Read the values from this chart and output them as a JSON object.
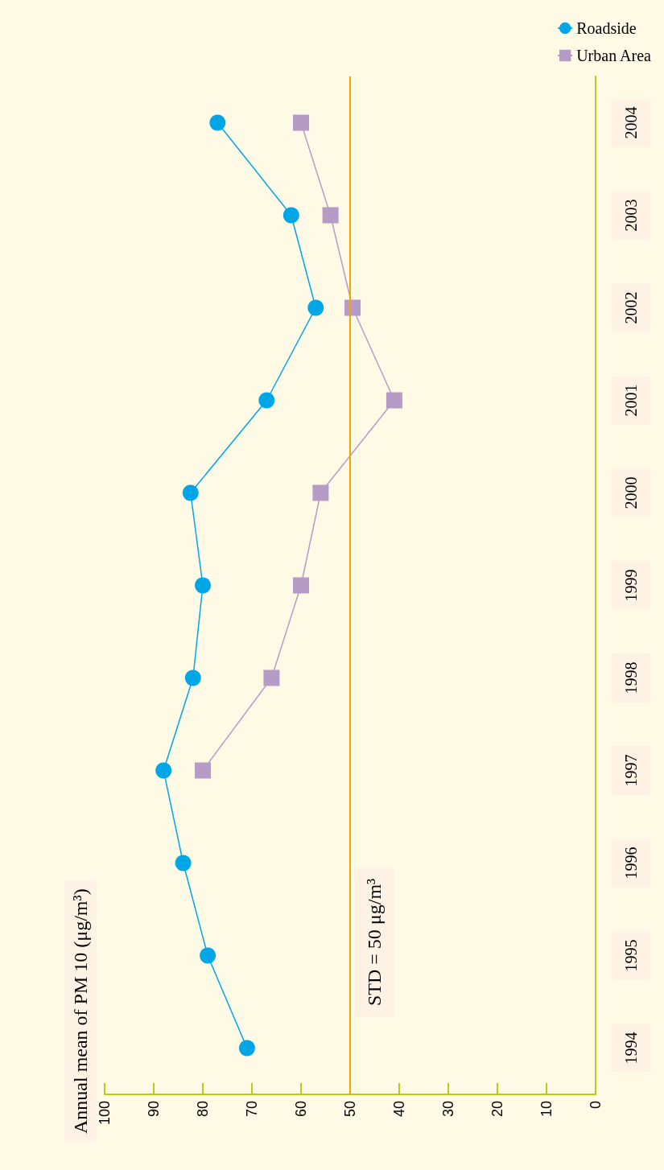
{
  "chart_data": {
    "type": "line",
    "orientation": "horizontal",
    "title": "Annual mean of PM 10 (μg/m³)",
    "categories": [
      "2004",
      "2003",
      "2002",
      "2001",
      "2000",
      "1999",
      "1998",
      "1997",
      "1996",
      "1995",
      "1994"
    ],
    "series": [
      {
        "name": "Roadside",
        "color": "#00a6e6",
        "marker": "circle",
        "values": [
          77,
          62,
          57,
          67,
          82.5,
          80,
          82,
          88,
          84,
          79,
          71
        ]
      },
      {
        "name": "Urban Area",
        "color": "#b79bc7",
        "marker": "square",
        "values": [
          60,
          54,
          49.5,
          41,
          56,
          60,
          66,
          80,
          null,
          null,
          null
        ]
      }
    ],
    "xlim": [
      100,
      0
    ],
    "xticks": [
      0,
      10,
      20,
      30,
      40,
      50,
      60,
      70,
      80,
      90,
      100
    ],
    "ref_lines": [
      {
        "axis": "x",
        "value": 50,
        "label": "STD = 50 μg/m³",
        "color": "#f0a500"
      }
    ],
    "grid": false,
    "legend": "top right"
  }
}
